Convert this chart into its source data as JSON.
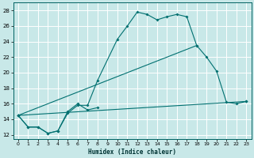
{
  "background_color": "#c8e8e8",
  "grid_color": "#aed4d4",
  "line_color": "#007070",
  "xlabel": "Humidex (Indice chaleur)",
  "xlim": [
    -0.5,
    23.5
  ],
  "ylim": [
    11.5,
    29.0
  ],
  "yticks": [
    12,
    14,
    16,
    18,
    20,
    22,
    24,
    26,
    28
  ],
  "xticks": [
    0,
    1,
    2,
    3,
    4,
    5,
    6,
    7,
    8,
    9,
    10,
    11,
    12,
    13,
    14,
    15,
    16,
    17,
    18,
    19,
    20,
    21,
    22,
    23
  ],
  "line_diagonal": {
    "x": [
      0,
      23
    ],
    "y": [
      14.5,
      16.3
    ]
  },
  "line_short": {
    "x": [
      0,
      1,
      2,
      3,
      4,
      5,
      6,
      7,
      8
    ],
    "y": [
      14.5,
      13.0,
      13.0,
      12.2,
      12.5,
      15.0,
      16.0,
      15.2,
      15.5
    ]
  },
  "line_upper": {
    "x": [
      0,
      1,
      2,
      3,
      4,
      5,
      6,
      7,
      8,
      10,
      11,
      12,
      13,
      14,
      15,
      16,
      17,
      18
    ],
    "y": [
      14.5,
      13.0,
      13.0,
      12.2,
      12.5,
      14.8,
      15.8,
      15.8,
      19.0,
      24.3,
      26.0,
      27.8,
      27.5,
      26.8,
      27.2,
      27.5,
      27.2,
      23.5
    ]
  },
  "line_right": {
    "x": [
      0,
      18,
      19,
      20,
      21,
      22,
      23
    ],
    "y": [
      14.5,
      23.5,
      22.0,
      20.2,
      16.2,
      16.0,
      16.3
    ]
  }
}
